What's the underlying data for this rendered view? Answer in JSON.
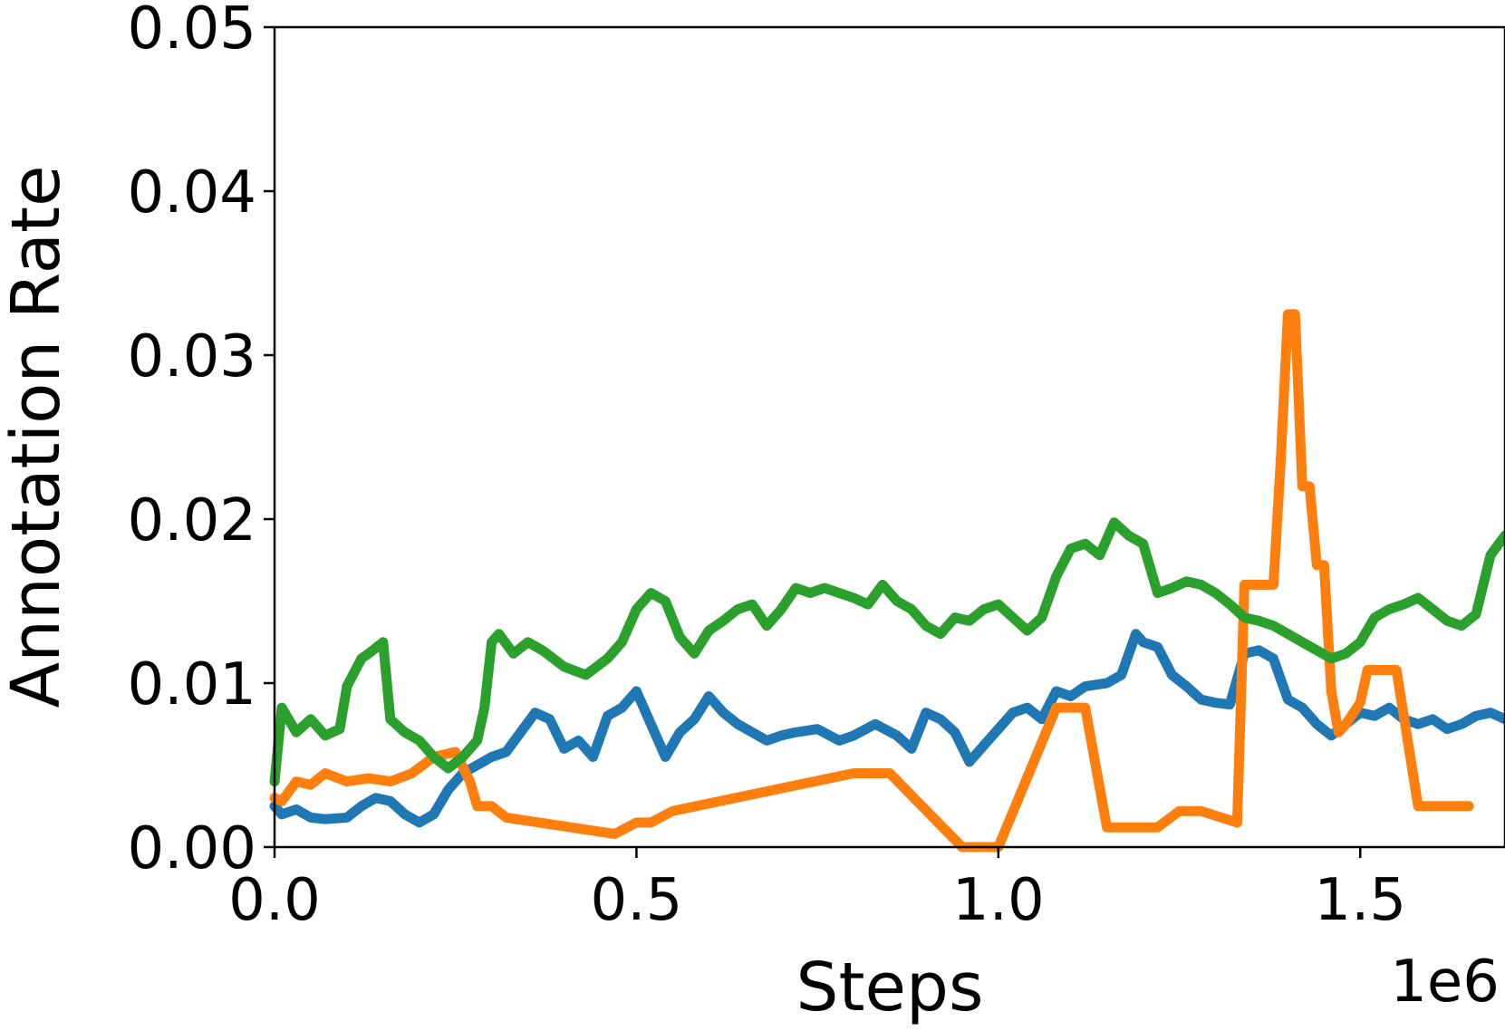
{
  "chart_data": {
    "type": "line",
    "title": "",
    "xlabel": "Steps",
    "ylabel": "Annotation Rate",
    "x_offset_label": "1e6",
    "xlim": [
      0,
      1.7
    ],
    "ylim": [
      0,
      0.05
    ],
    "xticks": [
      0.0,
      0.5,
      1.0,
      1.5
    ],
    "xtick_labels": [
      "0.0",
      "0.5",
      "1.0",
      "1.5"
    ],
    "yticks": [
      0.0,
      0.01,
      0.02,
      0.03,
      0.04,
      0.05
    ],
    "ytick_labels": [
      "0.00",
      "0.01",
      "0.02",
      "0.03",
      "0.04",
      "0.05"
    ],
    "grid": false,
    "legend": false,
    "series": [
      {
        "color": "#1f77b4",
        "x": [
          0.0,
          0.01,
          0.03,
          0.05,
          0.07,
          0.1,
          0.12,
          0.14,
          0.16,
          0.18,
          0.2,
          0.22,
          0.24,
          0.26,
          0.28,
          0.3,
          0.32,
          0.34,
          0.36,
          0.38,
          0.4,
          0.42,
          0.44,
          0.46,
          0.48,
          0.5,
          0.52,
          0.54,
          0.56,
          0.58,
          0.6,
          0.62,
          0.64,
          0.66,
          0.68,
          0.7,
          0.72,
          0.75,
          0.78,
          0.8,
          0.83,
          0.86,
          0.88,
          0.9,
          0.92,
          0.94,
          0.96,
          0.98,
          1.0,
          1.02,
          1.04,
          1.06,
          1.08,
          1.1,
          1.12,
          1.15,
          1.17,
          1.19,
          1.2,
          1.22,
          1.24,
          1.26,
          1.28,
          1.3,
          1.32,
          1.34,
          1.36,
          1.38,
          1.4,
          1.42,
          1.44,
          1.46,
          1.48,
          1.5,
          1.52,
          1.54,
          1.56,
          1.58,
          1.6,
          1.62,
          1.64,
          1.66,
          1.68,
          1.7
        ],
        "y": [
          0.0025,
          0.002,
          0.0023,
          0.0018,
          0.0017,
          0.0018,
          0.0025,
          0.003,
          0.0028,
          0.002,
          0.0015,
          0.002,
          0.0035,
          0.0045,
          0.005,
          0.0055,
          0.0058,
          0.007,
          0.0082,
          0.0078,
          0.006,
          0.0065,
          0.0055,
          0.008,
          0.0085,
          0.0095,
          0.0075,
          0.0055,
          0.007,
          0.0078,
          0.0092,
          0.0082,
          0.0075,
          0.007,
          0.0065,
          0.0068,
          0.007,
          0.0072,
          0.0065,
          0.0068,
          0.0075,
          0.0068,
          0.006,
          0.0082,
          0.0078,
          0.007,
          0.0052,
          0.0062,
          0.0072,
          0.0082,
          0.0085,
          0.0078,
          0.0095,
          0.0092,
          0.0098,
          0.01,
          0.0105,
          0.013,
          0.0125,
          0.0122,
          0.0105,
          0.0098,
          0.009,
          0.0088,
          0.0087,
          0.0118,
          0.012,
          0.0115,
          0.009,
          0.0085,
          0.0075,
          0.0068,
          0.0075,
          0.0082,
          0.008,
          0.0085,
          0.0078,
          0.0075,
          0.0078,
          0.0072,
          0.0075,
          0.008,
          0.0082,
          0.0078
        ]
      },
      {
        "color": "#ff7f0e",
        "x": [
          0.0,
          0.01,
          0.03,
          0.05,
          0.07,
          0.1,
          0.13,
          0.16,
          0.19,
          0.22,
          0.25,
          0.27,
          0.28,
          0.3,
          0.32,
          0.47,
          0.5,
          0.52,
          0.55,
          0.8,
          0.85,
          0.95,
          1.0,
          1.08,
          1.12,
          1.15,
          1.22,
          1.25,
          1.28,
          1.33,
          1.34,
          1.38,
          1.39,
          1.4,
          1.41,
          1.42,
          1.43,
          1.44,
          1.45,
          1.46,
          1.47,
          1.48,
          1.5,
          1.51,
          1.55,
          1.58,
          1.65
        ],
        "y": [
          0.003,
          0.0028,
          0.004,
          0.0038,
          0.0045,
          0.004,
          0.0042,
          0.004,
          0.0045,
          0.0055,
          0.0058,
          0.004,
          0.0025,
          0.0025,
          0.0018,
          0.0008,
          0.0015,
          0.0015,
          0.0022,
          0.0045,
          0.0045,
          0.0,
          0.0,
          0.0085,
          0.0085,
          0.0012,
          0.0012,
          0.0022,
          0.0022,
          0.0015,
          0.016,
          0.016,
          0.0235,
          0.0325,
          0.0325,
          0.022,
          0.022,
          0.0172,
          0.0172,
          0.0095,
          0.007,
          0.0075,
          0.0088,
          0.0108,
          0.0108,
          0.0025,
          0.0025
        ]
      },
      {
        "color": "#2ca02c",
        "x": [
          0.0,
          0.01,
          0.03,
          0.05,
          0.07,
          0.09,
          0.1,
          0.12,
          0.13,
          0.15,
          0.16,
          0.18,
          0.2,
          0.22,
          0.24,
          0.26,
          0.28,
          0.29,
          0.3,
          0.31,
          0.33,
          0.35,
          0.37,
          0.4,
          0.43,
          0.46,
          0.48,
          0.5,
          0.52,
          0.54,
          0.56,
          0.58,
          0.6,
          0.62,
          0.64,
          0.66,
          0.68,
          0.7,
          0.72,
          0.74,
          0.76,
          0.78,
          0.8,
          0.82,
          0.84,
          0.86,
          0.88,
          0.9,
          0.92,
          0.94,
          0.96,
          0.98,
          1.0,
          1.02,
          1.04,
          1.06,
          1.08,
          1.1,
          1.12,
          1.14,
          1.16,
          1.18,
          1.2,
          1.22,
          1.24,
          1.26,
          1.28,
          1.3,
          1.32,
          1.34,
          1.36,
          1.38,
          1.4,
          1.42,
          1.44,
          1.46,
          1.48,
          1.5,
          1.52,
          1.54,
          1.56,
          1.58,
          1.6,
          1.62,
          1.64,
          1.66,
          1.68,
          1.7
        ],
        "y": [
          0.004,
          0.0085,
          0.007,
          0.0078,
          0.0068,
          0.0072,
          0.0098,
          0.0115,
          0.0118,
          0.0125,
          0.0078,
          0.007,
          0.0065,
          0.0055,
          0.0048,
          0.0055,
          0.0065,
          0.0085,
          0.0125,
          0.013,
          0.0118,
          0.0125,
          0.012,
          0.011,
          0.0105,
          0.0115,
          0.0125,
          0.0145,
          0.0155,
          0.015,
          0.0128,
          0.0118,
          0.0132,
          0.0138,
          0.0145,
          0.0148,
          0.0135,
          0.0145,
          0.0158,
          0.0155,
          0.0158,
          0.0155,
          0.0152,
          0.0148,
          0.016,
          0.015,
          0.0145,
          0.0135,
          0.013,
          0.014,
          0.0138,
          0.0145,
          0.0148,
          0.014,
          0.0132,
          0.014,
          0.0165,
          0.0182,
          0.0185,
          0.0178,
          0.0198,
          0.019,
          0.0185,
          0.0155,
          0.0158,
          0.0162,
          0.016,
          0.0155,
          0.0148,
          0.014,
          0.0138,
          0.0135,
          0.013,
          0.0125,
          0.012,
          0.0115,
          0.0118,
          0.0125,
          0.014,
          0.0145,
          0.0148,
          0.0152,
          0.0145,
          0.0138,
          0.0135,
          0.0142,
          0.0178,
          0.019
        ]
      }
    ]
  }
}
